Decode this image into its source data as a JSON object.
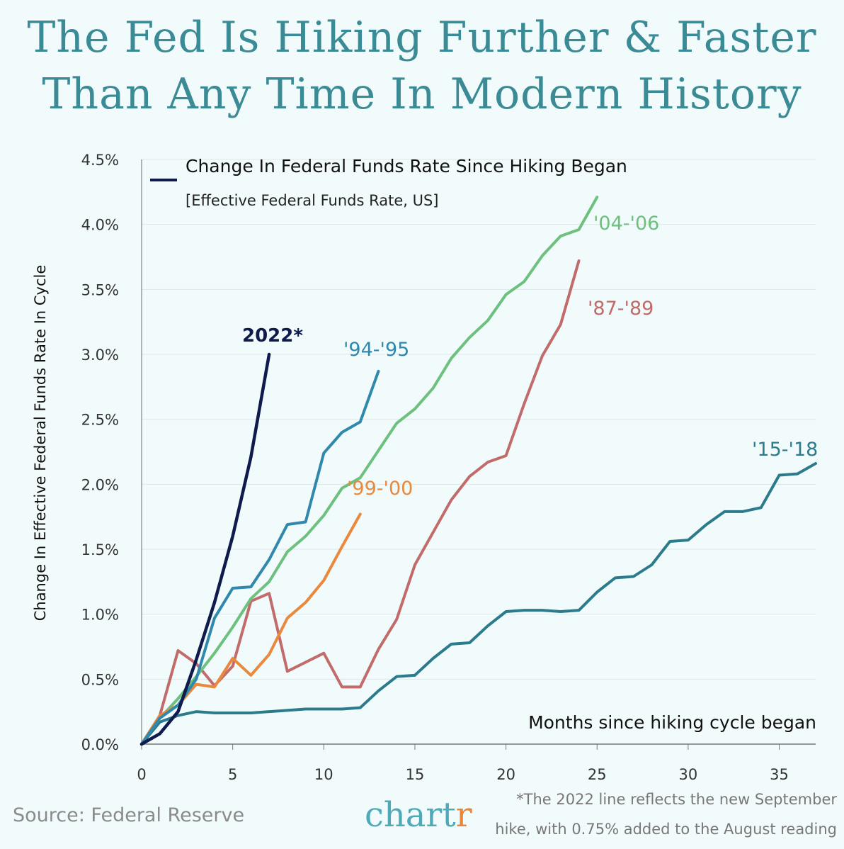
{
  "title_line1": "The Fed Is Hiking Further & Faster",
  "title_line2": "Than Any Time In Modern History",
  "source": "Source: Federal Reserve",
  "footnote_line1": "*The 2022 line reflects the new September",
  "footnote_line2": "hike, with 0.75% added to the August reading",
  "logo": "chartr",
  "chart_data": {
    "type": "line",
    "legend_title": "Change In Federal Funds Rate Since Hiking Began",
    "legend_subtitle": "[Effective Federal Funds Rate, US]",
    "xlabel": "Months since hiking cycle began",
    "ylabel": "Change In Effective Federal Funds Rate In Cycle",
    "xlim": [
      0,
      37
    ],
    "ylim": [
      0,
      4.5
    ],
    "xticks": [
      0,
      5,
      10,
      15,
      20,
      25,
      30,
      35
    ],
    "yticks": [
      "0.0%",
      "0.5%",
      "1.0%",
      "1.5%",
      "2.0%",
      "2.5%",
      "3.0%",
      "3.5%",
      "4.0%",
      "4.5%"
    ],
    "grid": true,
    "series": [
      {
        "name": "'15-'18",
        "color": "#2b7b8c",
        "values": [
          0,
          0.17,
          0.22,
          0.25,
          0.24,
          0.24,
          0.24,
          0.25,
          0.26,
          0.27,
          0.27,
          0.27,
          0.28,
          0.41,
          0.52,
          0.53,
          0.66,
          0.77,
          0.78,
          0.91,
          1.02,
          1.03,
          1.03,
          1.02,
          1.03,
          1.17,
          1.28,
          1.29,
          1.38,
          1.56,
          1.57,
          1.69,
          1.79,
          1.79,
          1.82,
          2.07,
          2.08,
          2.16
        ]
      },
      {
        "name": "'87-'89",
        "color": "#c26b6b",
        "values": [
          0,
          0.22,
          0.72,
          0.62,
          0.45,
          0.6,
          1.1,
          1.16,
          0.56,
          0.63,
          0.7,
          0.44,
          0.44,
          0.73,
          0.96,
          1.38,
          1.63,
          1.88,
          2.06,
          2.17,
          2.22,
          2.62,
          2.99,
          3.23,
          3.72
        ]
      },
      {
        "name": "'04-'06",
        "color": "#6dc07e",
        "values": [
          0,
          0.2,
          0.35,
          0.52,
          0.7,
          0.9,
          1.12,
          1.25,
          1.48,
          1.6,
          1.76,
          1.97,
          2.05,
          2.26,
          2.47,
          2.58,
          2.74,
          2.97,
          3.13,
          3.26,
          3.46,
          3.56,
          3.76,
          3.91,
          3.96,
          4.21
        ]
      },
      {
        "name": "'99-'00",
        "color": "#ea883c",
        "values": [
          0,
          0.22,
          0.3,
          0.46,
          0.44,
          0.66,
          0.53,
          0.69,
          0.97,
          1.09,
          1.26,
          1.52,
          1.77
        ]
      },
      {
        "name": "'94-'95",
        "color": "#3088ad",
        "values": [
          0,
          0.2,
          0.3,
          0.5,
          0.97,
          1.2,
          1.21,
          1.42,
          1.69,
          1.71,
          2.24,
          2.4,
          2.48,
          2.87
        ]
      },
      {
        "name": "2022*",
        "color": "#0e1b4c",
        "values": [
          0,
          0.08,
          0.25,
          0.65,
          1.09,
          1.6,
          2.21,
          3.0
        ]
      }
    ]
  }
}
